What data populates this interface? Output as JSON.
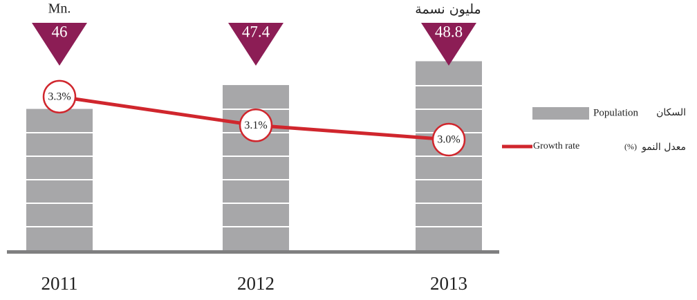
{
  "chart_data": {
    "type": "bar",
    "unit_label": "Mn.",
    "unit_label_ar": "مليون نسمة",
    "categories": [
      "2011",
      "2012",
      "2013"
    ],
    "ylim": [
      37.7,
      50
    ],
    "y2lim": [
      2.5,
      3.5
    ],
    "series": [
      {
        "name": "Population",
        "name_ar": "السكان",
        "color": "#a7a7a9",
        "label_color": "#8c1d55",
        "values": [
          46,
          47.4,
          48.8
        ]
      },
      {
        "name": "Growth rate",
        "unit": "(%)",
        "name_ar": "معدل النمو",
        "type": "line",
        "axis": "y2",
        "color": "#d0262d",
        "values": [
          3.3,
          3.1,
          3.0
        ],
        "value_labels": [
          "3.3%",
          "3.1%",
          "3.0%"
        ]
      }
    ]
  }
}
